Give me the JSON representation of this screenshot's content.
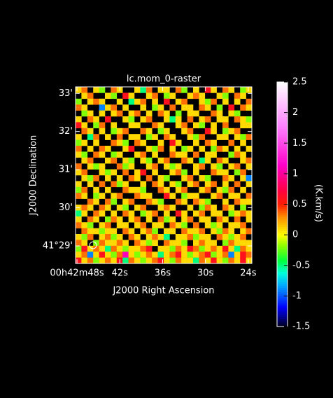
{
  "chart_data": {
    "type": "heatmap",
    "title": "lc.mom_0-raster",
    "x_label": "J2000 Right Ascension",
    "y_label": "J2000 Declination",
    "colorbar_label": "(K.km/s)",
    "xlim": [
      48.2,
      23.5
    ],
    "xticks": [
      {
        "value": 48,
        "label": "00h42m48s"
      },
      {
        "value": 42,
        "label": "42s"
      },
      {
        "value": 36,
        "label": "36s"
      },
      {
        "value": 30,
        "label": "30s"
      },
      {
        "value": 24,
        "label": "24s"
      }
    ],
    "ylim": [
      28.54,
      33.17
    ],
    "yticks": [
      {
        "value": 29,
        "label": "41°29'"
      },
      {
        "value": 30,
        "label": "30'"
      },
      {
        "value": 31,
        "label": "31'"
      },
      {
        "value": 32,
        "label": "32'"
      },
      {
        "value": 33,
        "label": "33'"
      }
    ],
    "zlim": [
      -1.5,
      2.5
    ],
    "zticks": [
      -1.5,
      -1,
      -0.5,
      0,
      0.5,
      1,
      1.5,
      2,
      2.5
    ],
    "z": [
      [
        0.1,
        0.35,
        null,
        0.1,
        -0.2,
        null,
        0.35,
        0.1,
        null,
        null,
        0.1,
        -0.5,
        0.35,
        null,
        0.1,
        0.1,
        null,
        0.35,
        -0.2,
        null,
        0.1,
        null,
        0.6,
        0.1,
        null,
        0.35,
        0.1,
        null,
        -0.2,
        0.1
      ],
      [
        null,
        0.1,
        0.35,
        null,
        null,
        0.1,
        -0.2,
        null,
        0.6,
        0.1,
        null,
        null,
        0.1,
        0.35,
        null,
        -0.2,
        0.1,
        null,
        null,
        0.1,
        0.35,
        0.1,
        null,
        null,
        0.1,
        -0.2,
        null,
        0.35,
        0.1,
        null
      ],
      [
        -0.2,
        null,
        0.1,
        0.35,
        0.1,
        null,
        null,
        0.1,
        null,
        -0.5,
        0.1,
        0.35,
        null,
        0.1,
        null,
        0.6,
        null,
        0.1,
        0.35,
        null,
        null,
        0.1,
        -0.2,
        0.35,
        null,
        0.1,
        null,
        0.1,
        null,
        0.35
      ],
      [
        0.35,
        0.1,
        null,
        null,
        -0.9,
        0.1,
        0.35,
        null,
        0.1,
        null,
        null,
        0.1,
        null,
        -0.2,
        0.1,
        null,
        0.35,
        null,
        0.1,
        0.1,
        null,
        0.35,
        0.1,
        null,
        -0.2,
        null,
        0.6,
        null,
        0.35,
        0.1
      ],
      [
        null,
        -0.2,
        0.1,
        null,
        0.1,
        null,
        0.1,
        0.35,
        null,
        0.1,
        0.35,
        null,
        0.1,
        null,
        0.35,
        0.1,
        null,
        -0.2,
        null,
        0.1,
        0.1,
        null,
        null,
        0.35,
        0.1,
        null,
        0.1,
        -0.2,
        null,
        null
      ],
      [
        0.1,
        null,
        0.35,
        0.1,
        null,
        0.6,
        null,
        null,
        0.1,
        -0.2,
        null,
        0.1,
        0.35,
        null,
        null,
        0.1,
        -0.5,
        0.1,
        null,
        0.35,
        null,
        0.1,
        0.35,
        null,
        0.1,
        0.1,
        null,
        0.35,
        0.1,
        -0.2
      ],
      [
        0.6,
        0.1,
        null,
        -0.2,
        0.35,
        null,
        0.1,
        null,
        null,
        0.1,
        0.1,
        null,
        null,
        0.35,
        0.1,
        null,
        null,
        0.1,
        0.35,
        null,
        0.1,
        -0.2,
        null,
        0.1,
        null,
        0.35,
        null,
        null,
        0.1,
        0.1
      ],
      [
        null,
        0.35,
        0.1,
        null,
        0.1,
        null,
        -0.2,
        0.1,
        0.35,
        null,
        null,
        0.35,
        0.1,
        null,
        -0.2,
        0.1,
        null,
        null,
        0.1,
        0.35,
        null,
        null,
        0.6,
        0.1,
        null,
        -0.2,
        0.1,
        0.35,
        null,
        null
      ],
      [
        0.1,
        null,
        -0.5,
        0.35,
        null,
        0.1,
        null,
        0.35,
        null,
        0.1,
        0.1,
        null,
        -0.2,
        0.1,
        null,
        0.35,
        0.1,
        null,
        null,
        0.1,
        -0.2,
        0.35,
        null,
        null,
        0.1,
        0.1,
        null,
        0.1,
        -0.2,
        0.35
      ],
      [
        -0.2,
        0.1,
        null,
        0.1,
        null,
        null,
        0.35,
        0.1,
        -0.2,
        null,
        0.35,
        0.1,
        null,
        null,
        0.1,
        null,
        0.6,
        0.1,
        null,
        null,
        0.1,
        null,
        0.35,
        0.1,
        null,
        null,
        0.35,
        null,
        0.1,
        null
      ],
      [
        0.35,
        null,
        0.1,
        null,
        0.35,
        0.1,
        null,
        null,
        0.1,
        0.6,
        null,
        null,
        0.1,
        -0.2,
        0.35,
        null,
        0.1,
        null,
        -0.2,
        0.1,
        null,
        0.1,
        null,
        -0.2,
        0.35,
        0.1,
        null,
        0.1,
        null,
        0.1
      ],
      [
        0.1,
        -0.2,
        null,
        0.35,
        0.1,
        null,
        -0.2,
        0.1,
        null,
        null,
        0.1,
        0.35,
        null,
        0.1,
        null,
        null,
        0.35,
        0.1,
        0.1,
        null,
        0.35,
        null,
        0.1,
        0.1,
        null,
        null,
        -0.2,
        0.35,
        0.1,
        null
      ],
      [
        null,
        0.1,
        0.35,
        null,
        null,
        0.1,
        0.35,
        null,
        0.1,
        -0.2,
        null,
        0.1,
        -0.2,
        null,
        0.1,
        0.35,
        null,
        null,
        0.35,
        0.1,
        null,
        -0.5,
        0.1,
        null,
        0.35,
        0.1,
        null,
        null,
        0.1,
        0.35
      ],
      [
        0.35,
        null,
        0.1,
        -0.2,
        0.1,
        null,
        null,
        0.35,
        -0.2,
        0.1,
        null,
        null,
        0.1,
        0.35,
        null,
        0.1,
        -0.2,
        0.1,
        null,
        null,
        0.1,
        0.35,
        null,
        0.1,
        -0.2,
        null,
        0.1,
        0.35,
        null,
        0.1
      ],
      [
        0.1,
        0.35,
        null,
        null,
        0.1,
        -0.2,
        0.1,
        null,
        0.35,
        null,
        0.1,
        0.6,
        null,
        0.1,
        null,
        null,
        0.1,
        0.35,
        -0.2,
        null,
        0.1,
        null,
        null,
        0.35,
        0.1,
        0.1,
        null,
        -0.2,
        0.35,
        null
      ],
      [
        null,
        0.1,
        -0.2,
        0.35,
        null,
        0.1,
        null,
        0.1,
        null,
        0.35,
        0.1,
        null,
        0.35,
        null,
        0.1,
        -0.2,
        null,
        null,
        0.1,
        0.35,
        null,
        0.1,
        -0.2,
        null,
        null,
        0.35,
        0.1,
        null,
        0.1,
        -0.9
      ],
      [
        0.1,
        null,
        0.1,
        null,
        0.35,
        null,
        0.35,
        -0.2,
        0.1,
        null,
        null,
        0.1,
        null,
        0.35,
        0.1,
        null,
        0.1,
        -0.2,
        null,
        0.1,
        0.35,
        null,
        0.1,
        0.35,
        null,
        0.1,
        null,
        0.35,
        null,
        0.1
      ],
      [
        -0.2,
        0.35,
        null,
        0.1,
        null,
        0.1,
        null,
        null,
        0.35,
        0.1,
        0.1,
        -0.2,
        null,
        null,
        0.35,
        0.1,
        null,
        0.1,
        0.35,
        null,
        null,
        0.1,
        0.35,
        null,
        0.1,
        -0.2,
        0.35,
        null,
        0.1,
        null
      ],
      [
        0.35,
        0.1,
        null,
        -0.2,
        0.1,
        null,
        0.1,
        0.35,
        null,
        null,
        0.35,
        0.1,
        0.1,
        null,
        null,
        0.6,
        0.1,
        null,
        -0.2,
        0.1,
        0.1,
        null,
        null,
        0.1,
        0.35,
        null,
        0.1,
        0.1,
        null,
        0.35
      ],
      [
        null,
        null,
        0.35,
        0.1,
        null,
        0.35,
        -0.2,
        null,
        0.1,
        0.35,
        null,
        null,
        0.35,
        0.1,
        -0.2,
        null,
        null,
        0.35,
        0.1,
        null,
        0.35,
        0.1,
        -0.2,
        null,
        null,
        0.1,
        null,
        0.35,
        0.1,
        0.1
      ],
      [
        0.1,
        0.35,
        0.1,
        null,
        0.35,
        0.1,
        null,
        0.1,
        -0.2,
        null,
        0.1,
        0.35,
        null,
        null,
        0.1,
        0.35,
        0.1,
        null,
        null,
        0.1,
        null,
        -0.2,
        0.35,
        0.1,
        null,
        0.35,
        0.1,
        null,
        -0.2,
        null
      ],
      [
        -0.5,
        0.1,
        null,
        0.35,
        0.1,
        null,
        0.1,
        null,
        0.35,
        0.1,
        null,
        -0.2,
        0.1,
        0.35,
        null,
        0.1,
        null,
        0.6,
        0.1,
        null,
        0.1,
        0.35,
        null,
        0.1,
        0.1,
        null,
        -0.2,
        0.1,
        0.35,
        0.1
      ],
      [
        0.1,
        null,
        0.35,
        0.1,
        null,
        -0.2,
        0.35,
        0.1,
        null,
        0.1,
        0.35,
        null,
        0.1,
        null,
        0.35,
        -0.2,
        0.1,
        null,
        0.1,
        0.35,
        null,
        0.1,
        0.1,
        null,
        0.35,
        0.1,
        null,
        0.35,
        null,
        0.1
      ],
      [
        0.35,
        0.1,
        -0.2,
        null,
        0.1,
        0.35,
        null,
        0.1,
        0.1,
        null,
        0.1,
        0.35,
        null,
        0.1,
        0.1,
        null,
        0.35,
        0.1,
        -0.2,
        null,
        0.35,
        null,
        0.1,
        -0.2,
        0.1,
        null,
        0.1,
        0.1,
        0.35,
        null
      ],
      [
        null,
        0.35,
        0.1,
        0.1,
        -0.2,
        0.1,
        0.1,
        null,
        0.35,
        0.1,
        null,
        0.1,
        0.35,
        -0.2,
        null,
        0.1,
        0.1,
        null,
        0.35,
        0.1,
        0.1,
        0.35,
        null,
        0.1,
        -0.2,
        0.35,
        0.1,
        null,
        0.1,
        0.35
      ],
      [
        0.1,
        -0.2,
        0.35,
        null,
        0.1,
        0.35,
        -0.2,
        0.1,
        null,
        0.35,
        0.1,
        null,
        0.1,
        0.35,
        0.1,
        -0.5,
        null,
        0.1,
        0.1,
        0.35,
        -0.2,
        0.1,
        0.1,
        null,
        0.35,
        0.1,
        -0.2,
        0.1,
        0.35,
        null
      ],
      [
        0.35,
        0.1,
        null,
        -0.2,
        0.35,
        0.1,
        0.1,
        0.35,
        0.1,
        null,
        0.35,
        0.1,
        -0.2,
        0.1,
        null,
        0.35,
        0.1,
        0.1,
        -0.2,
        null,
        0.1,
        0.35,
        0.1,
        0.1,
        null,
        -0.2,
        0.35,
        0.1,
        0.1,
        0.1
      ],
      [
        -0.2,
        0.6,
        0.1,
        0.35,
        0.1,
        -0.5,
        0.35,
        0.1,
        -0.2,
        0.1,
        0.1,
        0.35,
        0.6,
        null,
        0.1,
        0.1,
        -0.2,
        0.35,
        0.1,
        0.6,
        0.35,
        -0.2,
        0.1,
        0.35,
        0.1,
        0.6,
        0.1,
        -0.5,
        0.35,
        0.1
      ],
      [
        0.1,
        0.35,
        -0.9,
        0.1,
        0.6,
        0.1,
        -0.2,
        0.35,
        1.1,
        0.1,
        -0.2,
        0.1,
        0.35,
        0.1,
        -0.5,
        0.1,
        0.35,
        0.6,
        0.1,
        -0.2,
        0.1,
        0.35,
        0.6,
        -0.2,
        0.1,
        0.35,
        -0.9,
        0.1,
        0.6,
        0.35
      ],
      [
        0.6,
        0.1,
        0.35,
        -0.2,
        0.1,
        0.35,
        0.1,
        0.6,
        -0.5,
        0.35,
        0.1,
        -0.2,
        0.1,
        0.35,
        0.6,
        0.1,
        -0.2,
        0.35,
        0.1,
        0.1,
        -0.5,
        0.35,
        0.1,
        0.6,
        0.1,
        -0.2,
        0.35,
        0.1,
        0.6,
        0.1
      ]
    ]
  }
}
